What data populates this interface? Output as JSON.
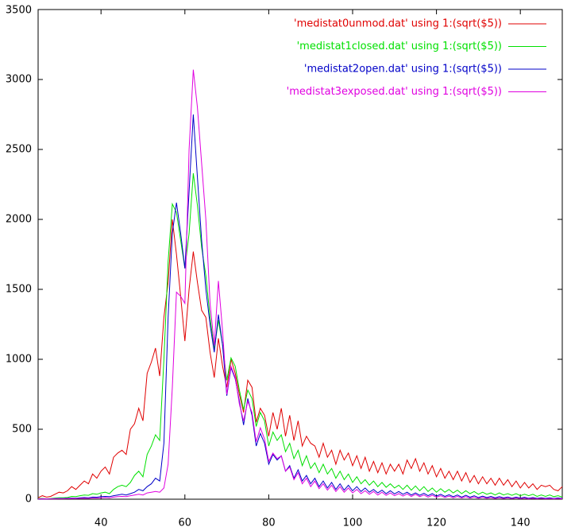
{
  "chart_data": {
    "type": "line",
    "legend": "top right",
    "grid": false,
    "x": [
      25,
      26,
      27,
      28,
      29,
      30,
      31,
      32,
      33,
      34,
      35,
      36,
      37,
      38,
      39,
      40,
      41,
      42,
      43,
      44,
      45,
      46,
      47,
      48,
      49,
      50,
      51,
      52,
      53,
      54,
      55,
      56,
      57,
      58,
      59,
      60,
      61,
      62,
      63,
      64,
      65,
      66,
      67,
      68,
      69,
      70,
      71,
      72,
      73,
      74,
      75,
      76,
      77,
      78,
      79,
      80,
      81,
      82,
      83,
      84,
      85,
      86,
      87,
      88,
      89,
      90,
      91,
      92,
      93,
      94,
      95,
      96,
      97,
      98,
      99,
      100,
      101,
      102,
      103,
      104,
      105,
      106,
      107,
      108,
      109,
      110,
      111,
      112,
      113,
      114,
      115,
      116,
      117,
      118,
      119,
      120,
      121,
      122,
      123,
      124,
      125,
      126,
      127,
      128,
      129,
      130,
      131,
      132,
      133,
      134,
      135,
      136,
      137,
      138,
      139,
      140,
      141,
      142,
      143,
      144,
      145,
      146,
      147,
      148,
      149,
      150
    ],
    "xlim": [
      25,
      150
    ],
    "xticks": [
      40,
      60,
      80,
      100,
      120,
      140
    ],
    "ylim": [
      0,
      3500
    ],
    "yticks": [
      0,
      500,
      1000,
      1500,
      2000,
      2500,
      3000,
      3500
    ],
    "series": [
      {
        "name": "'medistat0unmod.dat' using 1:(sqrt($5))",
        "color": "#e00000",
        "values": [
          10,
          25,
          15,
          20,
          35,
          50,
          45,
          60,
          90,
          70,
          100,
          130,
          110,
          180,
          150,
          200,
          230,
          180,
          300,
          330,
          350,
          320,
          500,
          540,
          650,
          560,
          900,
          980,
          1080,
          880,
          1300,
          1550,
          2000,
          1750,
          1450,
          1130,
          1500,
          1770,
          1550,
          1350,
          1300,
          1050,
          870,
          1150,
          950,
          800,
          1000,
          900,
          750,
          620,
          850,
          800,
          550,
          650,
          600,
          450,
          620,
          500,
          650,
          450,
          600,
          420,
          560,
          380,
          450,
          400,
          380,
          300,
          400,
          300,
          350,
          250,
          350,
          280,
          330,
          240,
          310,
          220,
          300,
          200,
          270,
          190,
          260,
          180,
          250,
          200,
          250,
          180,
          280,
          220,
          290,
          200,
          260,
          180,
          240,
          160,
          220,
          150,
          200,
          140,
          200,
          130,
          190,
          120,
          170,
          110,
          160,
          110,
          150,
          100,
          150,
          100,
          140,
          90,
          130,
          80,
          120,
          80,
          110,
          70,
          100,
          90,
          100,
          70,
          60,
          90
        ]
      },
      {
        "name": "'medistat1closed.dat' using 1:(sqrt($5))",
        "color": "#00e000",
        "values": [
          5,
          5,
          3,
          5,
          8,
          10,
          10,
          12,
          20,
          18,
          25,
          30,
          28,
          40,
          35,
          45,
          50,
          40,
          70,
          90,
          100,
          90,
          120,
          170,
          200,
          160,
          320,
          380,
          460,
          420,
          1000,
          1700,
          2110,
          2050,
          1850,
          1650,
          1900,
          2330,
          2100,
          1800,
          1600,
          1300,
          1070,
          1280,
          1100,
          850,
          1010,
          950,
          780,
          640,
          780,
          720,
          520,
          620,
          560,
          380,
          480,
          420,
          460,
          340,
          400,
          290,
          350,
          240,
          310,
          220,
          260,
          190,
          250,
          180,
          220,
          150,
          200,
          140,
          180,
          120,
          160,
          110,
          140,
          100,
          130,
          90,
          120,
          85,
          110,
          80,
          100,
          70,
          100,
          65,
          95,
          60,
          90,
          55,
          80,
          50,
          75,
          50,
          70,
          45,
          65,
          40,
          60,
          40,
          55,
          35,
          50,
          35,
          45,
          30,
          45,
          30,
          40,
          28,
          40,
          25,
          35,
          25,
          35,
          20,
          30,
          20,
          30,
          18,
          25,
          15
        ]
      },
      {
        "name": "'medistat2open.dat' using 1:(sqrt($5))",
        "color": "#0000c8",
        "values": [
          2,
          3,
          2,
          3,
          4,
          5,
          5,
          6,
          8,
          7,
          10,
          12,
          10,
          15,
          14,
          18,
          20,
          18,
          25,
          30,
          35,
          30,
          40,
          50,
          70,
          60,
          90,
          110,
          150,
          130,
          400,
          1300,
          1900,
          2120,
          1900,
          1650,
          2200,
          2750,
          2300,
          1850,
          1500,
          1250,
          1050,
          1320,
          1100,
          740,
          940,
          860,
          700,
          530,
          720,
          600,
          380,
          470,
          400,
          250,
          320,
          280,
          310,
          200,
          240,
          150,
          210,
          130,
          170,
          110,
          150,
          90,
          130,
          80,
          120,
          70,
          110,
          65,
          100,
          60,
          90,
          55,
          80,
          50,
          70,
          45,
          65,
          40,
          60,
          38,
          55,
          35,
          50,
          30,
          45,
          28,
          42,
          25,
          40,
          22,
          35,
          20,
          32,
          18,
          30,
          15,
          28,
          14,
          25,
          12,
          22,
          12,
          20,
          10,
          18,
          10,
          16,
          8,
          15,
          8,
          14,
          7,
          12,
          6,
          11,
          6,
          10,
          5,
          9,
          5
        ]
      },
      {
        "name": "'medistat3exposed.dat' using 1:(sqrt($5))",
        "color": "#e000e0",
        "values": [
          1,
          2,
          1,
          2,
          2,
          3,
          3,
          4,
          5,
          4,
          6,
          7,
          6,
          8,
          8,
          10,
          12,
          10,
          15,
          18,
          20,
          18,
          25,
          30,
          35,
          30,
          45,
          50,
          55,
          50,
          80,
          250,
          800,
          1480,
          1450,
          1400,
          2500,
          3070,
          2800,
          2400,
          2000,
          1400,
          1100,
          1560,
          1200,
          750,
          950,
          870,
          680,
          560,
          700,
          620,
          410,
          510,
          430,
          270,
          330,
          290,
          310,
          200,
          230,
          140,
          190,
          110,
          150,
          90,
          130,
          75,
          110,
          65,
          100,
          55,
          90,
          50,
          80,
          45,
          70,
          40,
          60,
          35,
          55,
          30,
          50,
          28,
          45,
          25,
          40,
          22,
          38,
          20,
          35,
          18,
          30,
          15,
          28,
          14,
          25,
          12,
          22,
          10,
          20,
          9,
          18,
          8,
          16,
          7,
          14,
          6,
          12,
          5,
          11,
          5,
          10,
          4,
          9,
          4,
          8,
          3,
          7,
          3,
          6,
          3,
          5,
          2,
          5,
          2
        ]
      }
    ]
  }
}
